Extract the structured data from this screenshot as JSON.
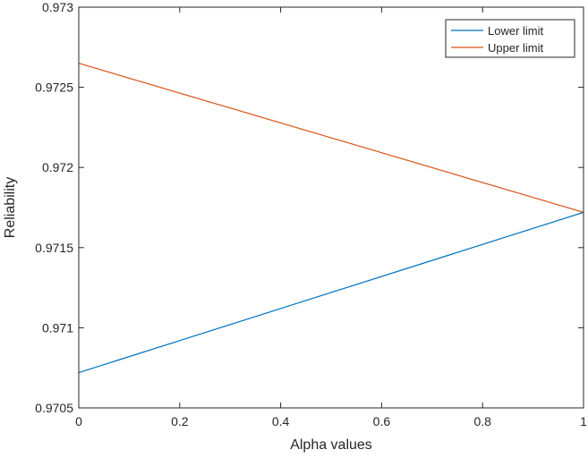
{
  "chart_data": {
    "type": "line",
    "xlabel": "Alpha values",
    "ylabel": "Reliability",
    "xlim": [
      0,
      1
    ],
    "ylim": [
      0.9705,
      0.973
    ],
    "x_ticks": [
      0,
      0.2,
      0.4,
      0.6,
      0.8,
      1
    ],
    "x_tick_labels": [
      "0",
      "0.2",
      "0.4",
      "0.6",
      "0.8",
      "1"
    ],
    "y_ticks": [
      0.9705,
      0.971,
      0.9715,
      0.972,
      0.9725,
      0.973
    ],
    "y_tick_labels": [
      "0.9705",
      "0.971",
      "0.9715",
      "0.972",
      "0.9725",
      "0.973"
    ],
    "grid": false,
    "legend_position": "top-right",
    "series": [
      {
        "name": "Lower limit",
        "color": "#0072bd",
        "x": [
          0,
          1
        ],
        "y": [
          0.97072,
          0.97172
        ]
      },
      {
        "name": "Upper limit",
        "color": "#d95319",
        "x": [
          0,
          1
        ],
        "y": [
          0.97265,
          0.97172
        ]
      }
    ]
  }
}
